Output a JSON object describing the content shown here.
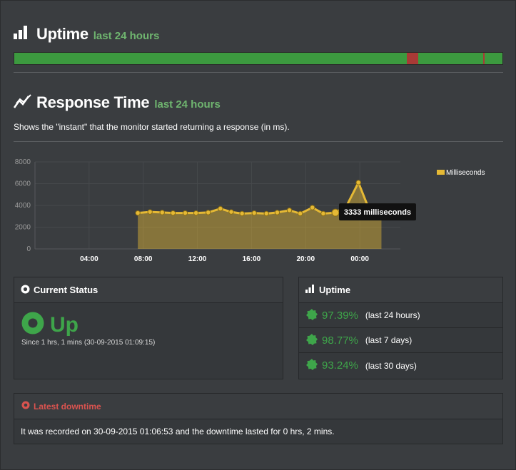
{
  "uptime_section": {
    "title": "Uptime",
    "subtitle": "last 24 hours",
    "bar": {
      "color_up": "#3c9a3f",
      "color_down": "#a83a36",
      "down_segments": [
        {
          "start": 0.804,
          "end": 0.827
        },
        {
          "start": 0.961,
          "end": 0.963
        }
      ]
    }
  },
  "response_section": {
    "title": "Response Time",
    "subtitle": "last 24 hours",
    "description": "Shows the \"instant\" that the monitor started returning a response (in ms)."
  },
  "chart_data": {
    "type": "area",
    "series": [
      {
        "name": "Milliseconds",
        "color": "#e5b935",
        "x": [
          7.6,
          8.5,
          9.4,
          10.2,
          11.1,
          11.9,
          12.8,
          13.7,
          14.5,
          15.3,
          16.2,
          17.1,
          17.9,
          18.8,
          19.6,
          20.5,
          21.3,
          22.2,
          23.0,
          23.9,
          24.7,
          25.6
        ],
        "values": [
          3300,
          3400,
          3350,
          3300,
          3300,
          3300,
          3350,
          3700,
          3400,
          3250,
          3300,
          3250,
          3350,
          3550,
          3250,
          3800,
          3250,
          3333,
          3900,
          6100,
          3600,
          3400
        ]
      }
    ],
    "x_tick_labels": [
      "04:00",
      "08:00",
      "12:00",
      "16:00",
      "20:00",
      "00:00"
    ],
    "x_ticks": [
      4,
      8,
      12,
      16,
      20,
      24
    ],
    "xlim": [
      0,
      27
    ],
    "y_ticks": [
      0,
      2000,
      4000,
      6000,
      8000
    ],
    "ylim": [
      0,
      8000
    ],
    "legend": {
      "label": "Milliseconds",
      "position": "top-right"
    },
    "tooltip": {
      "text": "3333 milliseconds",
      "point_x": 22.2,
      "point_y": 3333
    },
    "grid": true
  },
  "current_status": {
    "title": "Current Status",
    "status": "Up",
    "since": "Since 1 hrs, 1 mins (30-09-2015 01:09:15)"
  },
  "uptime_panel": {
    "title": "Uptime",
    "rows": [
      {
        "pct": "97.39%",
        "period": "(last 24 hours)"
      },
      {
        "pct": "98.77%",
        "period": "(last 7 days)"
      },
      {
        "pct": "93.24%",
        "period": "(last 30 days)"
      }
    ]
  },
  "downtime": {
    "title": "Latest downtime",
    "text": "It was recorded on 30-09-2015 01:06:53 and the downtime lasted for 0 hrs, 2 mins."
  }
}
